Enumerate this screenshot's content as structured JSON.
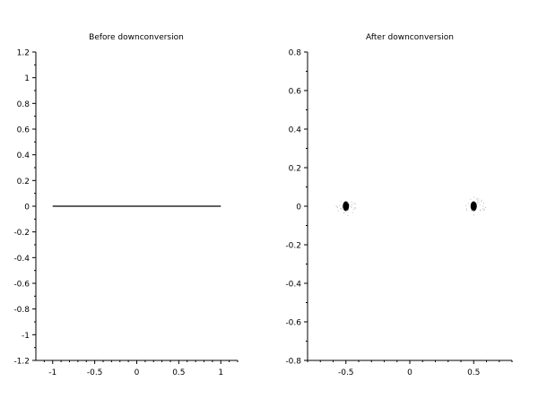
{
  "chart_data": [
    {
      "type": "scatter",
      "title": "Before downconversion",
      "xlabel": "",
      "ylabel": "",
      "xlim": [
        -1.2,
        1.2
      ],
      "ylim": [
        -1.2,
        1.2
      ],
      "xticks": [
        -1,
        -0.5,
        0,
        0.5,
        1
      ],
      "xtick_labels": [
        "-1",
        "-0.5",
        "0",
        "0.5",
        "1"
      ],
      "yticks": [
        1.2,
        1,
        0.8,
        0.6,
        0.4,
        0.2,
        0,
        -0.2,
        -0.4,
        -0.6,
        -0.8,
        -1,
        -1.2
      ],
      "ytick_labels": [
        "1.2",
        "1",
        "0.8",
        "0.6",
        "0.4",
        "0.2",
        "0",
        "-0.2",
        "-0.4",
        "-0.6",
        "-0.8",
        "-1",
        "-1.2"
      ],
      "grid": false,
      "series": [
        {
          "x_range": [
            -1,
            1
          ],
          "y": 0,
          "color": "#000000"
        }
      ]
    },
    {
      "type": "scatter",
      "title": "After downconversion",
      "xlabel": "",
      "ylabel": "",
      "xlim": [
        -0.8,
        0.8
      ],
      "ylim": [
        -0.8,
        0.8
      ],
      "xticks": [
        -0.5,
        0,
        0.5
      ],
      "xtick_labels": [
        "-0.5",
        "0",
        "0.5"
      ],
      "yticks": [
        0.8,
        0.6,
        0.4,
        0.2,
        0,
        -0.2,
        -0.4,
        -0.6,
        -0.8
      ],
      "ytick_labels": [
        "0.8",
        "0.6",
        "0.4",
        "0.2",
        "0",
        "-0.2",
        "-0.4",
        "-0.6",
        "-0.8"
      ],
      "grid": false,
      "series": [
        {
          "clusters": [
            {
              "x": -0.5,
              "y": 0
            },
            {
              "x": 0.5,
              "y": 0
            }
          ],
          "color": "#000000"
        }
      ]
    }
  ]
}
